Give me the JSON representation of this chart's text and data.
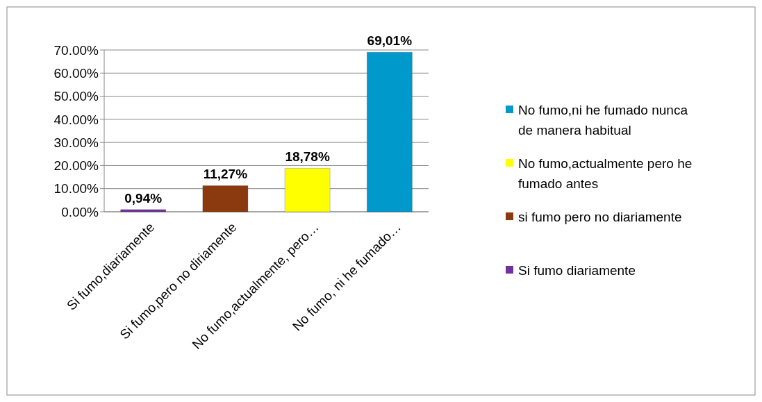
{
  "chart_data": {
    "type": "bar",
    "categories": [
      "Si fumo,diariamente",
      "Si fumo,pero no diriamente",
      "No fumo,actualmente, pero…",
      "No fumo, ni he fumado…"
    ],
    "series": [
      {
        "name": "Si fumo diariamente",
        "color": "#7030a0",
        "values": [
          0.94,
          null,
          null,
          null
        ],
        "value_labels": [
          "0,94%",
          null,
          null,
          null
        ]
      },
      {
        "name": "si fumo pero no diariamente",
        "color": "#8b3a0f",
        "values": [
          null,
          11.27,
          null,
          null
        ],
        "value_labels": [
          null,
          "11,27%",
          null,
          null
        ]
      },
      {
        "name": "No fumo,actualmente pero he fumado antes",
        "color": "#ffff00",
        "values": [
          null,
          null,
          18.78,
          null
        ],
        "value_labels": [
          null,
          null,
          "18,78%",
          null
        ]
      },
      {
        "name": "No fumo,ni he fumado nunca de manera habitual",
        "color": "#0099cc",
        "values": [
          null,
          null,
          null,
          69.01
        ],
        "value_labels": [
          null,
          null,
          null,
          "69,01%"
        ]
      }
    ],
    "ylim": [
      0,
      70
    ],
    "yticks": [
      {
        "value": 0,
        "label": "0.00%"
      },
      {
        "value": 10,
        "label": "10.00%"
      },
      {
        "value": 20,
        "label": "20.00%"
      },
      {
        "value": 30,
        "label": "30.00%"
      },
      {
        "value": 40,
        "label": "40.00%"
      },
      {
        "value": 50,
        "label": "50.00%"
      },
      {
        "value": 60,
        "label": "60.00%"
      },
      {
        "value": 70,
        "label": "70.00%"
      }
    ],
    "grid": "y",
    "legend": "right"
  }
}
